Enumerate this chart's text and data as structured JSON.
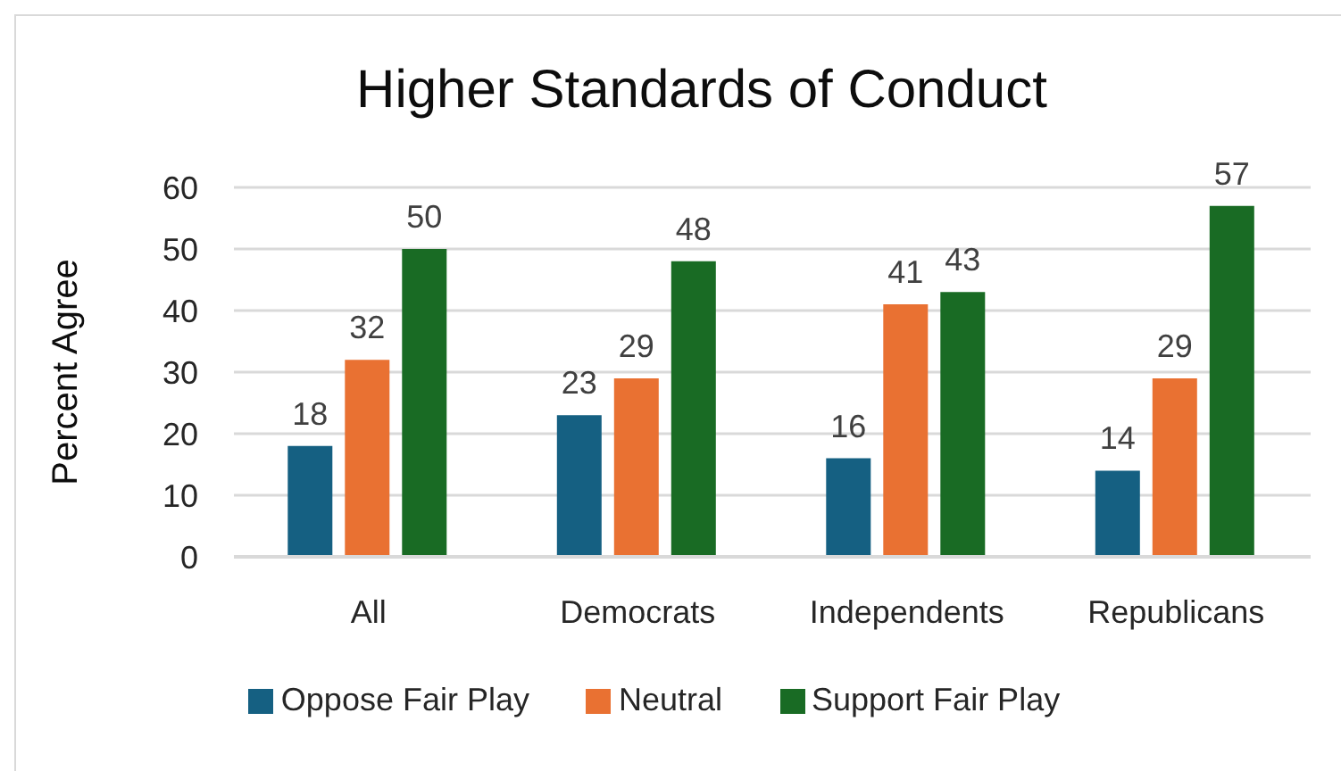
{
  "chart_data": {
    "type": "bar",
    "title": "Higher Standards of Conduct",
    "ylabel": "Percent Agree",
    "categories": [
      "All",
      "Democrats",
      "Independents",
      "Republicans"
    ],
    "series": [
      {
        "name": "Oppose Fair Play",
        "color": "#156082",
        "values": [
          18,
          23,
          16,
          14
        ]
      },
      {
        "name": "Neutral",
        "color": "#e97132",
        "values": [
          32,
          29,
          41,
          29
        ]
      },
      {
        "name": "Support Fair Play",
        "color": "#196b24",
        "values": [
          50,
          48,
          43,
          57
        ]
      }
    ],
    "ylim": [
      0,
      60
    ],
    "yticks": [
      0,
      10,
      20,
      30,
      40,
      50,
      60
    ],
    "grid": "y",
    "legend": "bottom",
    "data_labels": true
  }
}
